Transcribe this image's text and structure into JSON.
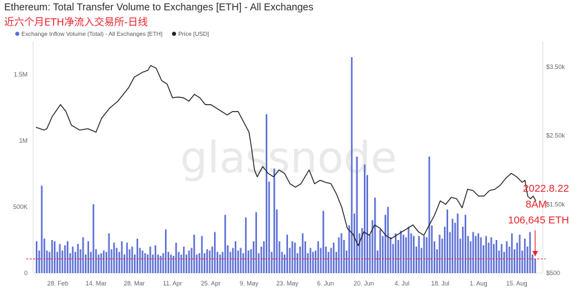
{
  "title": "Ethereum: Total Transfer Volume to Exchanges [ETH] - All Exchanges",
  "subtitle": "近六个月ETH净流入交易所-日线",
  "watermark": "glassnode",
  "legend": [
    {
      "label": "Exchange Inflow Volume (Total) - All Exchanges [ETH]",
      "color": "#5b6fd6",
      "shape": "dot"
    },
    {
      "label": "Price [USD]",
      "color": "#222222",
      "shape": "dot"
    }
  ],
  "annotation": {
    "date": "2022.8.22",
    "time": "8AM",
    "value": "106,645 ETH",
    "color": "#e8232b",
    "reference_line_value": 106645
  },
  "chart_data": {
    "type": "bar",
    "x_tick_labels": [
      "28. Feb",
      "14. Mar",
      "28. Mar",
      "11. Apr",
      "25. Apr",
      "9. May",
      "23. May",
      "6. Jun",
      "20. Jun",
      "4. Jul",
      "18. Jul",
      "1. Aug",
      "15. Aug"
    ],
    "left_axis": {
      "tick_labels": [
        "0",
        "500K",
        "1M",
        "1.5M"
      ],
      "tick_values": [
        0,
        500000,
        1000000,
        1500000
      ],
      "ylim": [
        0,
        1750000
      ]
    },
    "right_axis": {
      "tick_labels": [
        "$500",
        "$1.50k",
        "$2.50k",
        "$3.50k"
      ],
      "tick_values": [
        500,
        1500,
        2500,
        3500
      ],
      "ylim": [
        500,
        3870
      ],
      "scale": "linear"
    },
    "x_range": [
      "2022-02-20",
      "2022-08-22"
    ],
    "series": [
      {
        "name": "Exchange Inflow Volume (Total) - All Exchanges [ETH]",
        "kind": "bar",
        "axis": "left",
        "color": "#5b6fd6",
        "values": [
          240000,
          170000,
          660000,
          260000,
          170000,
          160000,
          250000,
          240000,
          160000,
          220000,
          170000,
          210000,
          240000,
          150000,
          200000,
          160000,
          220000,
          180000,
          270000,
          140000,
          240000,
          160000,
          520000,
          180000,
          140000,
          150000,
          170000,
          160000,
          300000,
          180000,
          230000,
          190000,
          160000,
          240000,
          140000,
          230000,
          180000,
          200000,
          140000,
          260000,
          190000,
          170000,
          150000,
          140000,
          200000,
          140000,
          210000,
          140000,
          130000,
          150000,
          330000,
          160000,
          140000,
          130000,
          230000,
          160000,
          140000,
          200000,
          140000,
          170000,
          190000,
          290000,
          140000,
          150000,
          280000,
          150000,
          180000,
          170000,
          200000,
          310000,
          160000,
          140000,
          160000,
          440000,
          210000,
          160000,
          190000,
          240000,
          170000,
          190000,
          150000,
          420000,
          170000,
          180000,
          240000,
          460000,
          150000,
          200000,
          240000,
          1200000,
          690000,
          160000,
          790000,
          480000,
          240000,
          160000,
          140000,
          290000,
          190000,
          240000,
          230000,
          150000,
          200000,
          300000,
          240000,
          150000,
          190000,
          160000,
          170000,
          240000,
          190000,
          470000,
          200000,
          160000,
          190000,
          230000,
          160000,
          270000,
          300000,
          250000,
          170000,
          360000,
          1630000,
          450000,
          880000,
          300000,
          340000,
          820000,
          740000,
          290000,
          400000,
          570000,
          170000,
          330000,
          280000,
          440000,
          500000,
          270000,
          220000,
          300000,
          250000,
          320000,
          290000,
          270000,
          350000,
          300000,
          280000,
          200000,
          280000,
          190000,
          280000,
          270000,
          880000,
          360000,
          240000,
          180000,
          290000,
          260000,
          350000,
          480000,
          310000,
          410000,
          380000,
          450000,
          260000,
          350000,
          440000,
          280000,
          240000,
          310000,
          280000,
          300000,
          270000,
          210000,
          280000,
          230000,
          270000,
          220000,
          250000,
          170000,
          220000,
          160000,
          240000,
          200000,
          300000,
          180000,
          230000,
          290000,
          170000,
          260000,
          200000,
          310000,
          140000,
          106645
        ]
      },
      {
        "name": "Price [USD]",
        "kind": "line",
        "axis": "right",
        "color": "#222222",
        "points": [
          [
            "2022-02-20",
            2620
          ],
          [
            "2022-02-23",
            2580
          ],
          [
            "2022-02-24",
            2600
          ],
          [
            "2022-02-26",
            2780
          ],
          [
            "2022-03-01",
            2950
          ],
          [
            "2022-03-03",
            2850
          ],
          [
            "2022-03-05",
            2650
          ],
          [
            "2022-03-08",
            2580
          ],
          [
            "2022-03-11",
            2600
          ],
          [
            "2022-03-14",
            2550
          ],
          [
            "2022-03-16",
            2750
          ],
          [
            "2022-03-19",
            2900
          ],
          [
            "2022-03-22",
            3000
          ],
          [
            "2022-03-24",
            3100
          ],
          [
            "2022-03-26",
            3200
          ],
          [
            "2022-03-28",
            3350
          ],
          [
            "2022-03-31",
            3420
          ],
          [
            "2022-04-02",
            3450
          ],
          [
            "2022-04-03",
            3520
          ],
          [
            "2022-04-05",
            3480
          ],
          [
            "2022-04-07",
            3300
          ],
          [
            "2022-04-09",
            3250
          ],
          [
            "2022-04-11",
            3050
          ],
          [
            "2022-04-13",
            3060
          ],
          [
            "2022-04-15",
            3050
          ],
          [
            "2022-04-17",
            3000
          ],
          [
            "2022-04-19",
            3100
          ],
          [
            "2022-04-21",
            3050
          ],
          [
            "2022-04-23",
            2950
          ],
          [
            "2022-04-25",
            2950
          ],
          [
            "2022-04-27",
            2900
          ],
          [
            "2022-04-29",
            2850
          ],
          [
            "2022-05-01",
            2800
          ],
          [
            "2022-05-03",
            2850
          ],
          [
            "2022-05-05",
            2850
          ],
          [
            "2022-05-07",
            2700
          ],
          [
            "2022-05-09",
            2550
          ],
          [
            "2022-05-10",
            2300
          ],
          [
            "2022-05-11",
            2000
          ],
          [
            "2022-05-12",
            1900
          ],
          [
            "2022-05-14",
            2050
          ],
          [
            "2022-05-16",
            1950
          ],
          [
            "2022-05-18",
            1900
          ],
          [
            "2022-05-20",
            2000
          ],
          [
            "2022-05-22",
            1950
          ],
          [
            "2022-05-24",
            1800
          ],
          [
            "2022-05-26",
            1750
          ],
          [
            "2022-05-28",
            1800
          ],
          [
            "2022-05-31",
            2000
          ],
          [
            "2022-06-02",
            1800
          ],
          [
            "2022-06-04",
            1850
          ],
          [
            "2022-06-06",
            1820
          ],
          [
            "2022-06-08",
            1800
          ],
          [
            "2022-06-10",
            1650
          ],
          [
            "2022-06-12",
            1450
          ],
          [
            "2022-06-14",
            1150
          ],
          [
            "2022-06-16",
            1070
          ],
          [
            "2022-06-18",
            900
          ],
          [
            "2022-06-20",
            1100
          ],
          [
            "2022-06-22",
            1050
          ],
          [
            "2022-06-24",
            1200
          ],
          [
            "2022-06-26",
            1150
          ],
          [
            "2022-06-28",
            1050
          ],
          [
            "2022-06-30",
            1000
          ],
          [
            "2022-07-02",
            1050
          ],
          [
            "2022-07-04",
            1100
          ],
          [
            "2022-07-06",
            1150
          ],
          [
            "2022-07-08",
            1200
          ],
          [
            "2022-07-10",
            1100
          ],
          [
            "2022-07-12",
            1050
          ],
          [
            "2022-07-14",
            1200
          ],
          [
            "2022-07-16",
            1350
          ],
          [
            "2022-07-18",
            1550
          ],
          [
            "2022-07-20",
            1500
          ],
          [
            "2022-07-22",
            1600
          ],
          [
            "2022-07-24",
            1580
          ],
          [
            "2022-07-26",
            1450
          ],
          [
            "2022-07-28",
            1720
          ],
          [
            "2022-07-30",
            1700
          ],
          [
            "2022-08-01",
            1620
          ],
          [
            "2022-08-03",
            1620
          ],
          [
            "2022-08-05",
            1700
          ],
          [
            "2022-08-07",
            1720
          ],
          [
            "2022-08-09",
            1780
          ],
          [
            "2022-08-11",
            1880
          ],
          [
            "2022-08-13",
            1950
          ],
          [
            "2022-08-15",
            1900
          ],
          [
            "2022-08-17",
            1820
          ],
          [
            "2022-08-18",
            1850
          ],
          [
            "2022-08-19",
            1620
          ],
          [
            "2022-08-20",
            1580
          ],
          [
            "2022-08-21",
            1620
          ],
          [
            "2022-08-22",
            1550
          ]
        ]
      }
    ],
    "grid": {
      "horizontal": false,
      "vertical": false
    },
    "legend_position": "top-left"
  }
}
